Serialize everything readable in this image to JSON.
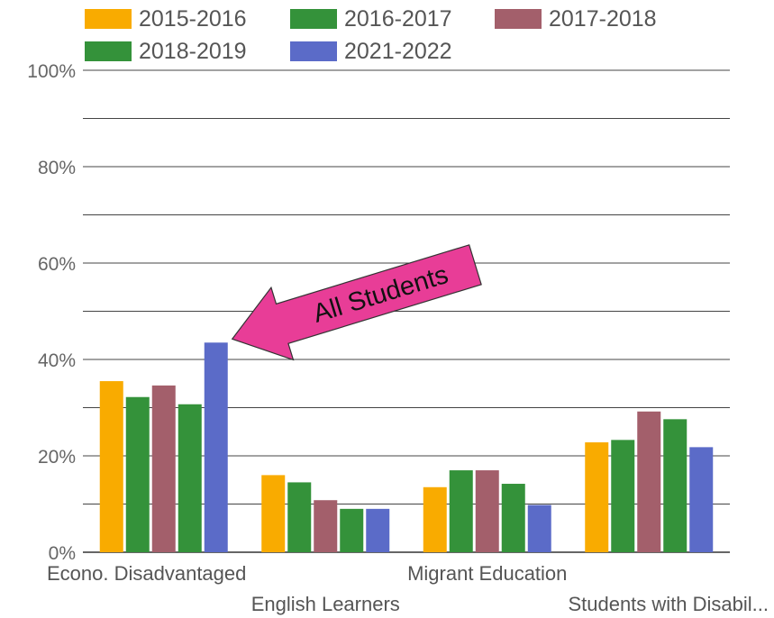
{
  "chart_data": {
    "type": "bar",
    "title": "",
    "xlabel": "",
    "ylabel": "",
    "ylim": [
      0,
      100
    ],
    "yticks": [
      0,
      20,
      40,
      60,
      80,
      100
    ],
    "ytick_labels": [
      "0%",
      "20%",
      "40%",
      "60%",
      "80%",
      "100%"
    ],
    "grid": true,
    "legend_position": "top",
    "categories": [
      "Econo. Disadvantaged",
      "English Learners",
      "Migrant Education",
      "Students with Disabil..."
    ],
    "series": [
      {
        "name": "2015-2016",
        "color": "#f9ab00",
        "values": [
          35.5,
          16,
          13.5,
          22.8
        ]
      },
      {
        "name": "2016-2017",
        "color": "#34923a",
        "values": [
          32.2,
          14.5,
          17,
          23.3
        ]
      },
      {
        "name": "2017-2018",
        "color": "#a35f6b",
        "values": [
          34.6,
          10.8,
          17,
          29.2
        ]
      },
      {
        "name": "2018-2019",
        "color": "#34923a",
        "values": [
          30.7,
          9,
          14.2,
          27.6
        ]
      },
      {
        "name": "2021-2022",
        "color": "#5b6bc8",
        "values": [
          43.5,
          9,
          9.8,
          21.8
        ]
      }
    ],
    "annotation": {
      "text": "All Students",
      "color": "#e83d97",
      "points_to": {
        "category": 0,
        "series": 4
      }
    }
  }
}
